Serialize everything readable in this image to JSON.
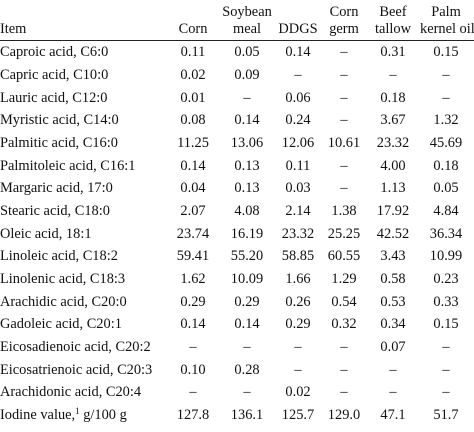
{
  "table": {
    "headers": [
      {
        "lines": [
          "Item"
        ]
      },
      {
        "lines": [
          "Corn"
        ]
      },
      {
        "lines": [
          "Soybean",
          "meal"
        ]
      },
      {
        "lines": [
          "DDGS"
        ]
      },
      {
        "lines": [
          "Corn",
          "germ"
        ]
      },
      {
        "lines": [
          "Beef",
          "tallow"
        ]
      },
      {
        "lines": [
          "Palm",
          "kernel oil"
        ]
      }
    ],
    "rows": [
      {
        "item": "Caproic acid, C6:0",
        "values": [
          "0.11",
          "0.05",
          "0.14",
          "–",
          "0.31",
          "0.15"
        ]
      },
      {
        "item": "Capric acid, C10:0",
        "values": [
          "0.02",
          "0.09",
          "–",
          "–",
          "–",
          "–"
        ]
      },
      {
        "item": "Lauric acid, C12:0",
        "values": [
          "0.01",
          "–",
          "0.06",
          "–",
          "0.18",
          "–"
        ]
      },
      {
        "item": "Myristic acid, C14:0",
        "values": [
          "0.08",
          "0.14",
          "0.24",
          "–",
          "3.67",
          "1.32"
        ]
      },
      {
        "item": "Palmitic acid, C16:0",
        "values": [
          "11.25",
          "13.06",
          "12.06",
          "10.61",
          "23.32",
          "45.69"
        ]
      },
      {
        "item": "Palmitoleic acid, C16:1",
        "values": [
          "0.14",
          "0.13",
          "0.11",
          "–",
          "4.00",
          "0.18"
        ]
      },
      {
        "item": "Margaric acid, 17:0",
        "values": [
          "0.04",
          "0.13",
          "0.03",
          "–",
          "1.13",
          "0.05"
        ]
      },
      {
        "item": "Stearic acid, C18:0",
        "values": [
          "2.07",
          "4.08",
          "2.14",
          "1.38",
          "17.92",
          "4.84"
        ]
      },
      {
        "item": "Oleic acid, 18:1",
        "values": [
          "23.74",
          "16.19",
          "23.32",
          "25.25",
          "42.52",
          "36.34"
        ]
      },
      {
        "item": "Linoleic acid, C18:2",
        "values": [
          "59.41",
          "55.20",
          "58.85",
          "60.55",
          "3.43",
          "10.99"
        ]
      },
      {
        "item": "Linolenic acid, C18:3",
        "values": [
          "1.62",
          "10.09",
          "1.66",
          "1.29",
          "0.58",
          "0.23"
        ]
      },
      {
        "item": "Arachidic acid, C20:0",
        "values": [
          "0.29",
          "0.29",
          "0.26",
          "0.54",
          "0.53",
          "0.33"
        ]
      },
      {
        "item": "Gadoleic acid, C20:1",
        "values": [
          "0.14",
          "0.14",
          "0.29",
          "0.32",
          "0.34",
          "0.15"
        ]
      },
      {
        "item": "Eicosadienoic acid, C20:2",
        "values": [
          "–",
          "–",
          "–",
          "–",
          "0.07",
          "–"
        ]
      },
      {
        "item": "Eicosatrienoic acid, C20:3",
        "values": [
          "0.10",
          "0.28",
          "–",
          "–",
          "–",
          "–"
        ]
      },
      {
        "item": "Arachidonic acid, C20:4",
        "values": [
          "–",
          "–",
          "0.02",
          "–",
          "–",
          "–"
        ]
      },
      {
        "item": "Iodine value,",
        "item_sup": "1",
        "item_suffix": " g/100 g",
        "values": [
          "127.8",
          "136.1",
          "125.7",
          "129.0",
          "47.1",
          "51.7"
        ]
      }
    ]
  }
}
